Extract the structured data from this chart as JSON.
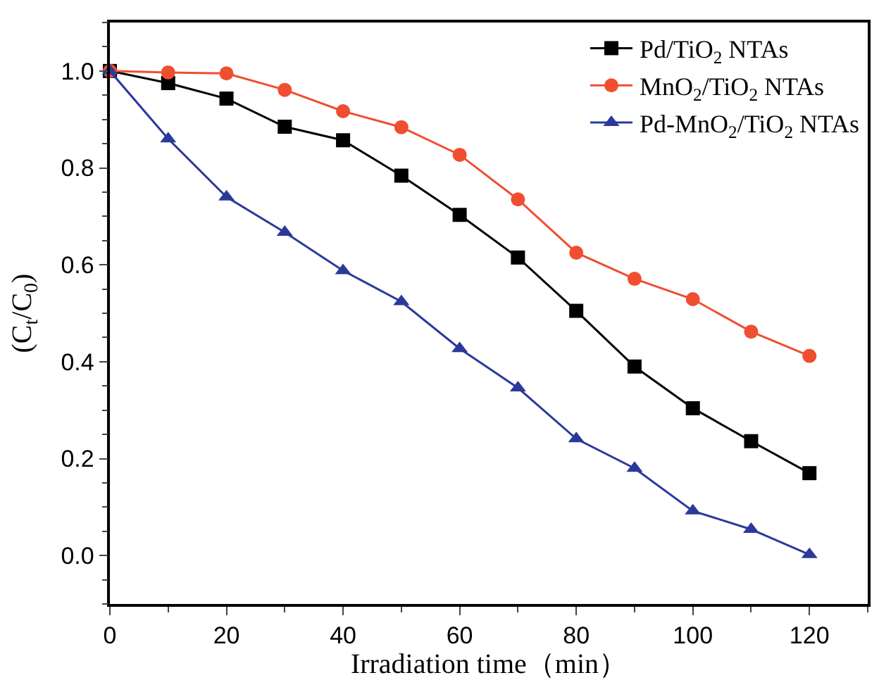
{
  "chart_data": {
    "type": "line",
    "xlabel": "Irradiation time（min）",
    "ylabel": "(C$_{t}$/C$_{0}$)",
    "x": [
      0,
      10,
      20,
      30,
      40,
      50,
      60,
      70,
      80,
      90,
      100,
      110,
      120
    ],
    "series": [
      {
        "name": "Pd/TiO$_{2}$ NTAs",
        "color": "#000000",
        "marker": "square",
        "values": [
          1.0,
          0.975,
          0.943,
          0.885,
          0.857,
          0.784,
          0.703,
          0.615,
          0.505,
          0.39,
          0.304,
          0.236,
          0.17
        ]
      },
      {
        "name": "MnO$_{2}$/TiO$_{2}$ NTAs",
        "color": "#f04e30",
        "marker": "circle",
        "values": [
          1.0,
          0.997,
          0.995,
          0.961,
          0.917,
          0.884,
          0.827,
          0.735,
          0.625,
          0.571,
          0.529,
          0.462,
          0.412
        ]
      },
      {
        "name": "Pd-MnO$_{2}$/TiO$_{2}$ NTAs",
        "color": "#2b3a9a",
        "marker": "triangle",
        "values": [
          1.0,
          0.86,
          0.74,
          0.667,
          0.588,
          0.524,
          0.427,
          0.346,
          0.241,
          0.18,
          0.092,
          0.054,
          0.002
        ]
      }
    ],
    "xlim": [
      0,
      130
    ],
    "xticks": [
      0,
      20,
      40,
      60,
      80,
      100,
      120
    ],
    "ylim": [
      -0.1,
      1.1
    ],
    "yticks": [
      {
        "value": 0,
        "label": "0.0"
      },
      {
        "value": 0.2,
        "label": "0.2"
      },
      {
        "value": 0.4,
        "label": "0.4"
      },
      {
        "value": 0.6,
        "label": "0.6"
      },
      {
        "value": 0.8,
        "label": "0.8"
      },
      {
        "value": 1.0,
        "label": "1.0"
      }
    ],
    "legend": "top right",
    "line_style": "solid"
  }
}
